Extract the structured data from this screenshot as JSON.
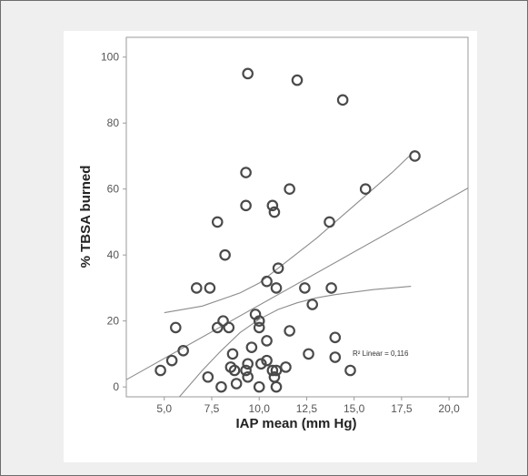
{
  "chart_data": {
    "type": "scatter",
    "xlabel": "IAP mean (mm Hg)",
    "ylabel": "% TBSA burned",
    "xlim": [
      3.0,
      21.0
    ],
    "ylim": [
      -3,
      106
    ],
    "x_ticks": [
      5.0,
      7.5,
      10.0,
      12.5,
      15.0,
      17.5,
      20.0
    ],
    "x_tick_labels": [
      "5,0",
      "7,5",
      "10,0",
      "12,5",
      "15,0",
      "17,5",
      "20,0"
    ],
    "y_ticks": [
      0,
      20,
      40,
      60,
      80,
      100
    ],
    "y_tick_labels": [
      "0",
      "20",
      "40",
      "60",
      "80",
      "100"
    ],
    "grid": false,
    "r2_label": "R² Linear = 0,116",
    "points": [
      {
        "x": 9.4,
        "y": 95
      },
      {
        "x": 12.0,
        "y": 93
      },
      {
        "x": 14.4,
        "y": 87
      },
      {
        "x": 18.2,
        "y": 70
      },
      {
        "x": 9.3,
        "y": 65
      },
      {
        "x": 11.6,
        "y": 60
      },
      {
        "x": 15.6,
        "y": 60
      },
      {
        "x": 9.3,
        "y": 55
      },
      {
        "x": 10.7,
        "y": 55
      },
      {
        "x": 10.8,
        "y": 53
      },
      {
        "x": 7.8,
        "y": 50
      },
      {
        "x": 13.7,
        "y": 50
      },
      {
        "x": 8.2,
        "y": 40
      },
      {
        "x": 11.0,
        "y": 36
      },
      {
        "x": 10.4,
        "y": 32
      },
      {
        "x": 6.7,
        "y": 30
      },
      {
        "x": 7.4,
        "y": 30
      },
      {
        "x": 10.9,
        "y": 30
      },
      {
        "x": 12.4,
        "y": 30
      },
      {
        "x": 13.8,
        "y": 30
      },
      {
        "x": 12.8,
        "y": 25
      },
      {
        "x": 9.8,
        "y": 22
      },
      {
        "x": 8.1,
        "y": 20
      },
      {
        "x": 10.0,
        "y": 20
      },
      {
        "x": 5.6,
        "y": 18
      },
      {
        "x": 7.8,
        "y": 18
      },
      {
        "x": 8.4,
        "y": 18
      },
      {
        "x": 10.0,
        "y": 18
      },
      {
        "x": 11.6,
        "y": 17
      },
      {
        "x": 14.0,
        "y": 15
      },
      {
        "x": 10.4,
        "y": 14
      },
      {
        "x": 9.6,
        "y": 12
      },
      {
        "x": 6.0,
        "y": 11
      },
      {
        "x": 8.6,
        "y": 10
      },
      {
        "x": 12.6,
        "y": 10
      },
      {
        "x": 5.4,
        "y": 8
      },
      {
        "x": 9.4,
        "y": 7
      },
      {
        "x": 10.4,
        "y": 8
      },
      {
        "x": 10.1,
        "y": 7
      },
      {
        "x": 14.0,
        "y": 9
      },
      {
        "x": 8.5,
        "y": 6
      },
      {
        "x": 8.7,
        "y": 5
      },
      {
        "x": 9.3,
        "y": 5
      },
      {
        "x": 10.7,
        "y": 5
      },
      {
        "x": 10.9,
        "y": 5
      },
      {
        "x": 11.4,
        "y": 6
      },
      {
        "x": 4.8,
        "y": 5
      },
      {
        "x": 14.8,
        "y": 5
      },
      {
        "x": 9.4,
        "y": 3
      },
      {
        "x": 7.3,
        "y": 3
      },
      {
        "x": 10.8,
        "y": 3
      },
      {
        "x": 8.0,
        "y": 0
      },
      {
        "x": 8.8,
        "y": 1
      },
      {
        "x": 10.0,
        "y": 0
      },
      {
        "x": 10.9,
        "y": 0
      }
    ],
    "fit_line": {
      "x": [
        3.0,
        21.0
      ],
      "y": [
        2.2,
        60.3
      ]
    },
    "ci_upper": {
      "x": [
        5.0,
        7.0,
        9.0,
        10.0,
        11.0,
        13.0,
        15.0,
        17.0,
        18.0
      ],
      "y": [
        22.5,
        24.5,
        28.5,
        31.5,
        36.0,
        45.0,
        55.0,
        65.0,
        70.5
      ]
    },
    "ci_lower": {
      "x": [
        5.5,
        7.0,
        8.0,
        9.0,
        10.0,
        11.0,
        12.0,
        13.0,
        14.0,
        16.0,
        18.0
      ],
      "y": [
        -5.0,
        5.0,
        11.0,
        16.5,
        20.5,
        23.5,
        25.5,
        27.0,
        28.0,
        29.5,
        30.5
      ]
    }
  }
}
